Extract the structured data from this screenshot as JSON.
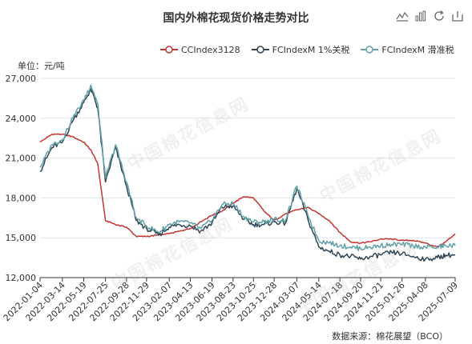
{
  "title": "国内外棉花现货价格走势对比",
  "unit_label": "单位：元/吨",
  "source": "数据来源：棉花展望（BCO）",
  "watermark": "中国棉花信息网",
  "toolbox": [
    {
      "name": "line-view-icon"
    },
    {
      "name": "bar-view-icon"
    },
    {
      "name": "restore-icon"
    },
    {
      "name": "save-image-icon"
    }
  ],
  "legend": [
    {
      "label": "CCIndex3128",
      "color": "#c23531"
    },
    {
      "label": "FCIndexM 1%关税",
      "color": "#2f4554"
    },
    {
      "label": "FCIndexM 滑准税",
      "color": "#61a0a8"
    }
  ],
  "chart_data": {
    "type": "line",
    "title": "国内外棉花现货价格走势对比",
    "ylim": [
      12000,
      27000
    ],
    "yticks": [
      "12,000",
      "15,000",
      "18,000",
      "21,000",
      "24,000",
      "27,000"
    ],
    "xticks": [
      "2022-01-04",
      "2022-03-14",
      "2022-05-19",
      "2022-07-25",
      "2022-09-28",
      "2022-11-29",
      "2023-02-07",
      "2023-04-13",
      "2023-06-19",
      "2023-08-23",
      "2023-10-25",
      "2023-12-28",
      "2024-03-07",
      "2024-05-14",
      "2024-07-18",
      "2024-09-20",
      "2024-11-21",
      "2025-01-26",
      "2025-04-08",
      "2025-07-09"
    ],
    "x": [
      "2022-01-04",
      "2022-02-10",
      "2022-03-14",
      "2022-04-15",
      "2022-05-19",
      "2022-06-10",
      "2022-07-01",
      "2022-07-25",
      "2022-08-25",
      "2022-09-28",
      "2022-10-28",
      "2022-11-29",
      "2023-01-05",
      "2023-02-07",
      "2023-03-10",
      "2023-04-13",
      "2023-05-15",
      "2023-06-19",
      "2023-07-20",
      "2023-08-23",
      "2023-09-25",
      "2023-10-25",
      "2023-11-27",
      "2023-12-28",
      "2024-02-01",
      "2024-03-07",
      "2024-04-10",
      "2024-05-14",
      "2024-06-15",
      "2024-07-18",
      "2024-08-20",
      "2024-09-20",
      "2024-10-20",
      "2024-11-21",
      "2024-12-25",
      "2025-01-26",
      "2025-03-01",
      "2025-04-08",
      "2025-05-15",
      "2025-06-10",
      "2025-07-09"
    ],
    "series": [
      {
        "name": "CCIndex3128",
        "color": "#c23531",
        "values": [
          22200,
          22800,
          22800,
          22600,
          22200,
          21600,
          20600,
          16300,
          16000,
          15800,
          15100,
          15100,
          15200,
          15300,
          15500,
          15700,
          16200,
          16700,
          17000,
          17600,
          18100,
          18000,
          17000,
          16300,
          16800,
          17100,
          17300,
          16800,
          16300,
          15400,
          14700,
          14600,
          14700,
          14900,
          14900,
          14800,
          14800,
          14600,
          14300,
          14700,
          15300
        ]
      },
      {
        "name": "FCIndexM 1%关税",
        "color": "#2f4554",
        "values": [
          20000,
          21800,
          22200,
          23800,
          25200,
          26200,
          24800,
          19200,
          21800,
          18900,
          16300,
          15700,
          15200,
          15800,
          16000,
          15900,
          15500,
          16100,
          17300,
          17400,
          16400,
          16000,
          16000,
          16200,
          16100,
          18700,
          16400,
          14300,
          14000,
          13700,
          13600,
          13400,
          13600,
          13700,
          13900,
          13800,
          13600,
          13400,
          13500,
          13700,
          13700
        ]
      },
      {
        "name": "FCIndexM 滑准税",
        "color": "#61a0a8",
        "values": [
          20300,
          22000,
          22400,
          24000,
          25400,
          26500,
          25100,
          19500,
          22000,
          19200,
          16500,
          15900,
          15400,
          16000,
          16200,
          16100,
          15700,
          16300,
          17500,
          17600,
          16600,
          16200,
          16200,
          16400,
          16300,
          18900,
          16700,
          14800,
          14600,
          14400,
          14300,
          14200,
          14300,
          14400,
          14500,
          14500,
          14400,
          14300,
          14300,
          14400,
          14400
        ]
      }
    ]
  }
}
